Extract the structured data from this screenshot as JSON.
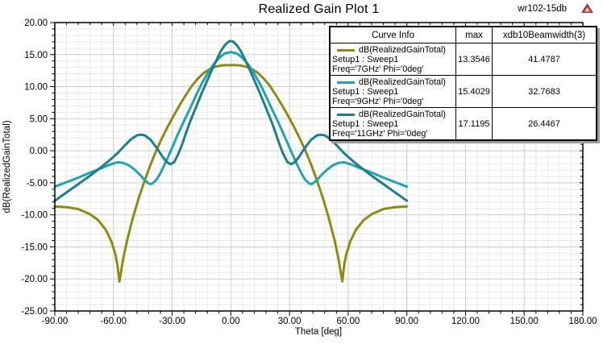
{
  "header": {
    "title": "Realized Gain Plot 1",
    "annotation": "wr102-15db",
    "logo": "ansoft-triangle-logo"
  },
  "axes": {
    "x": {
      "label": "Theta [deg]",
      "min": -90,
      "max": 180,
      "major_step": 30,
      "minor_step": 6,
      "tick_labels": [
        "-90.00",
        "-60.00",
        "-30.00",
        "0.00",
        "30.00",
        "60.00",
        "90.00",
        "120.00",
        "150.00",
        "180.00"
      ]
    },
    "y": {
      "label": "dB(RealizedGainTotal)",
      "min": -25,
      "max": 20,
      "major_step": 5,
      "minor_step": 1,
      "tick_labels": [
        "20.00",
        "15.00",
        "10.00",
        "5.00",
        "0.00",
        "-5.00",
        "-10.00",
        "-15.00",
        "-20.00",
        "-25.00"
      ]
    }
  },
  "legend": {
    "columns": [
      "Curve Info",
      "max",
      "xdb10Beamwidth(3)"
    ],
    "rows": [
      {
        "curve": "dB(RealizedGainTotal)",
        "setup": "Setup1 : Sweep1",
        "variation": "Freq='7GHz' Phi='0deg'",
        "max": "13.3546",
        "beamwidth": "41.4787",
        "color": "#8c8c14"
      },
      {
        "curve": "dB(RealizedGainTotal)",
        "setup": "Setup1 : Sweep1",
        "variation": "Freq='9GHz' Phi='0deg'",
        "max": "15.4029",
        "beamwidth": "32.7683",
        "color": "#21a3b4"
      },
      {
        "curve": "dB(RealizedGainTotal)",
        "setup": "Setup1 : Sweep1",
        "variation": "Freq='11GHz' Phi='0deg'",
        "max": "17.1195",
        "beamwidth": "26.4467",
        "color": "#1d7e8f"
      }
    ]
  },
  "chart_data": {
    "type": "line",
    "title": "Realized Gain Plot 1",
    "xlabel": "Theta [deg]",
    "ylabel": "dB(RealizedGainTotal)",
    "xlim": [
      -90,
      180
    ],
    "ylim": [
      -25,
      20
    ],
    "grid": "major+minor",
    "legend_position": "top-right",
    "series": [
      {
        "name": "dB(RealizedGainTotal) Setup1:Sweep1 Freq='7GHz' Phi='0deg'",
        "color": "#8c8c14",
        "max": 13.3546,
        "beamwidth_db10": 41.4787,
        "points": [
          [
            -90,
            -8.7
          ],
          [
            -84,
            -8.8
          ],
          [
            -78,
            -9.1
          ],
          [
            -72,
            -9.9
          ],
          [
            -68,
            -10.8
          ],
          [
            -64,
            -12.3
          ],
          [
            -61,
            -14.2
          ],
          [
            -59,
            -16.2
          ],
          [
            -58,
            -17.8
          ],
          [
            -57,
            -20.4
          ],
          [
            -56,
            -18.6
          ],
          [
            -55,
            -16.8
          ],
          [
            -53,
            -13.9
          ],
          [
            -50,
            -10.4
          ],
          [
            -47,
            -7.3
          ],
          [
            -44,
            -4.6
          ],
          [
            -41,
            -2.1
          ],
          [
            -38,
            0.1
          ],
          [
            -35,
            2.1
          ],
          [
            -32,
            3.9
          ],
          [
            -29,
            5.6
          ],
          [
            -26,
            7.2
          ],
          [
            -23,
            8.7
          ],
          [
            -20,
            10.1
          ],
          [
            -17,
            11.2
          ],
          [
            -14,
            12.1
          ],
          [
            -11,
            12.7
          ],
          [
            -8,
            13.1
          ],
          [
            -5,
            13.3
          ],
          [
            -2,
            13.35
          ],
          [
            0,
            13.3546
          ],
          [
            2,
            13.35
          ],
          [
            5,
            13.3
          ],
          [
            8,
            13.1
          ],
          [
            11,
            12.7
          ],
          [
            14,
            12.1
          ],
          [
            17,
            11.2
          ],
          [
            20,
            10.1
          ],
          [
            23,
            8.7
          ],
          [
            26,
            7.2
          ],
          [
            29,
            5.6
          ],
          [
            32,
            3.9
          ],
          [
            35,
            2.1
          ],
          [
            38,
            0.1
          ],
          [
            41,
            -2.1
          ],
          [
            44,
            -4.6
          ],
          [
            47,
            -7.3
          ],
          [
            50,
            -10.4
          ],
          [
            53,
            -13.9
          ],
          [
            55,
            -16.8
          ],
          [
            56,
            -18.6
          ],
          [
            57,
            -20.4
          ],
          [
            58,
            -17.8
          ],
          [
            59,
            -16.2
          ],
          [
            61,
            -14.2
          ],
          [
            64,
            -12.3
          ],
          [
            68,
            -10.8
          ],
          [
            72,
            -9.9
          ],
          [
            78,
            -9.1
          ],
          [
            84,
            -8.8
          ],
          [
            90,
            -8.7
          ]
        ]
      },
      {
        "name": "dB(RealizedGainTotal) Setup1:Sweep1 Freq='9GHz' Phi='0deg'",
        "color": "#21a3b4",
        "max": 15.4029,
        "beamwidth_db10": 32.7683,
        "points": [
          [
            -90,
            -5.6
          ],
          [
            -84,
            -4.9
          ],
          [
            -78,
            -4.2
          ],
          [
            -72,
            -3.4
          ],
          [
            -66,
            -2.7
          ],
          [
            -62,
            -2.2
          ],
          [
            -58,
            -1.8
          ],
          [
            -55,
            -1.9
          ],
          [
            -52,
            -2.3
          ],
          [
            -49,
            -3.0
          ],
          [
            -46,
            -3.9
          ],
          [
            -44,
            -4.6
          ],
          [
            -42,
            -5.1
          ],
          [
            -41,
            -5.2
          ],
          [
            -40,
            -5.1
          ],
          [
            -38,
            -4.5
          ],
          [
            -36,
            -3.5
          ],
          [
            -33,
            -1.6
          ],
          [
            -30,
            0.5
          ],
          [
            -27,
            2.6
          ],
          [
            -24,
            4.6
          ],
          [
            -21,
            6.5
          ],
          [
            -18,
            8.5
          ],
          [
            -15,
            10.4
          ],
          [
            -12,
            12.0
          ],
          [
            -9,
            13.4
          ],
          [
            -6,
            14.5
          ],
          [
            -3,
            15.2
          ],
          [
            0,
            15.4029
          ],
          [
            3,
            15.2
          ],
          [
            6,
            14.5
          ],
          [
            9,
            13.4
          ],
          [
            12,
            12.0
          ],
          [
            15,
            10.4
          ],
          [
            18,
            8.5
          ],
          [
            21,
            6.5
          ],
          [
            24,
            4.6
          ],
          [
            27,
            2.6
          ],
          [
            30,
            0.5
          ],
          [
            33,
            -1.6
          ],
          [
            36,
            -3.5
          ],
          [
            38,
            -4.5
          ],
          [
            40,
            -5.1
          ],
          [
            41,
            -5.2
          ],
          [
            42,
            -5.1
          ],
          [
            44,
            -4.6
          ],
          [
            46,
            -3.9
          ],
          [
            49,
            -3.0
          ],
          [
            52,
            -2.3
          ],
          [
            55,
            -1.9
          ],
          [
            58,
            -1.8
          ],
          [
            62,
            -2.2
          ],
          [
            66,
            -2.7
          ],
          [
            72,
            -3.4
          ],
          [
            78,
            -4.2
          ],
          [
            84,
            -4.9
          ],
          [
            90,
            -5.6
          ]
        ]
      },
      {
        "name": "dB(RealizedGainTotal) Setup1:Sweep1 Freq='11GHz' Phi='0deg'",
        "color": "#1d7e8f",
        "max": 17.1195,
        "beamwidth_db10": 26.4467,
        "points": [
          [
            -90,
            -7.8
          ],
          [
            -84,
            -6.5
          ],
          [
            -78,
            -5.2
          ],
          [
            -72,
            -3.9
          ],
          [
            -66,
            -2.5
          ],
          [
            -62,
            -1.5
          ],
          [
            -58,
            -0.4
          ],
          [
            -54,
            0.9
          ],
          [
            -51,
            1.8
          ],
          [
            -48,
            2.4
          ],
          [
            -46,
            2.5
          ],
          [
            -44,
            2.4
          ],
          [
            -41,
            1.7
          ],
          [
            -38,
            0.5
          ],
          [
            -35,
            -0.9
          ],
          [
            -33,
            -1.7
          ],
          [
            -31,
            -2.1
          ],
          [
            -29,
            -1.8
          ],
          [
            -27,
            -0.6
          ],
          [
            -25,
            0.9
          ],
          [
            -23,
            2.7
          ],
          [
            -21,
            4.4
          ],
          [
            -19,
            5.9
          ],
          [
            -17,
            7.4
          ],
          [
            -15,
            8.9
          ],
          [
            -13,
            10.3
          ],
          [
            -11,
            11.7
          ],
          [
            -9,
            13.1
          ],
          [
            -7,
            14.4
          ],
          [
            -5,
            15.6
          ],
          [
            -3,
            16.5
          ],
          [
            -1,
            17.05
          ],
          [
            0,
            17.1195
          ],
          [
            1,
            17.05
          ],
          [
            3,
            16.5
          ],
          [
            5,
            15.6
          ],
          [
            7,
            14.4
          ],
          [
            9,
            13.1
          ],
          [
            11,
            11.7
          ],
          [
            13,
            10.3
          ],
          [
            15,
            8.9
          ],
          [
            17,
            7.4
          ],
          [
            19,
            5.9
          ],
          [
            21,
            4.4
          ],
          [
            23,
            2.7
          ],
          [
            25,
            0.9
          ],
          [
            27,
            -0.6
          ],
          [
            29,
            -1.8
          ],
          [
            31,
            -2.1
          ],
          [
            33,
            -1.7
          ],
          [
            35,
            -0.9
          ],
          [
            38,
            0.5
          ],
          [
            41,
            1.7
          ],
          [
            44,
            2.4
          ],
          [
            46,
            2.5
          ],
          [
            48,
            2.4
          ],
          [
            51,
            1.8
          ],
          [
            54,
            0.9
          ],
          [
            58,
            -0.4
          ],
          [
            62,
            -1.5
          ],
          [
            66,
            -2.5
          ],
          [
            72,
            -3.9
          ],
          [
            78,
            -5.2
          ],
          [
            84,
            -6.5
          ],
          [
            90,
            -7.8
          ]
        ]
      }
    ]
  }
}
